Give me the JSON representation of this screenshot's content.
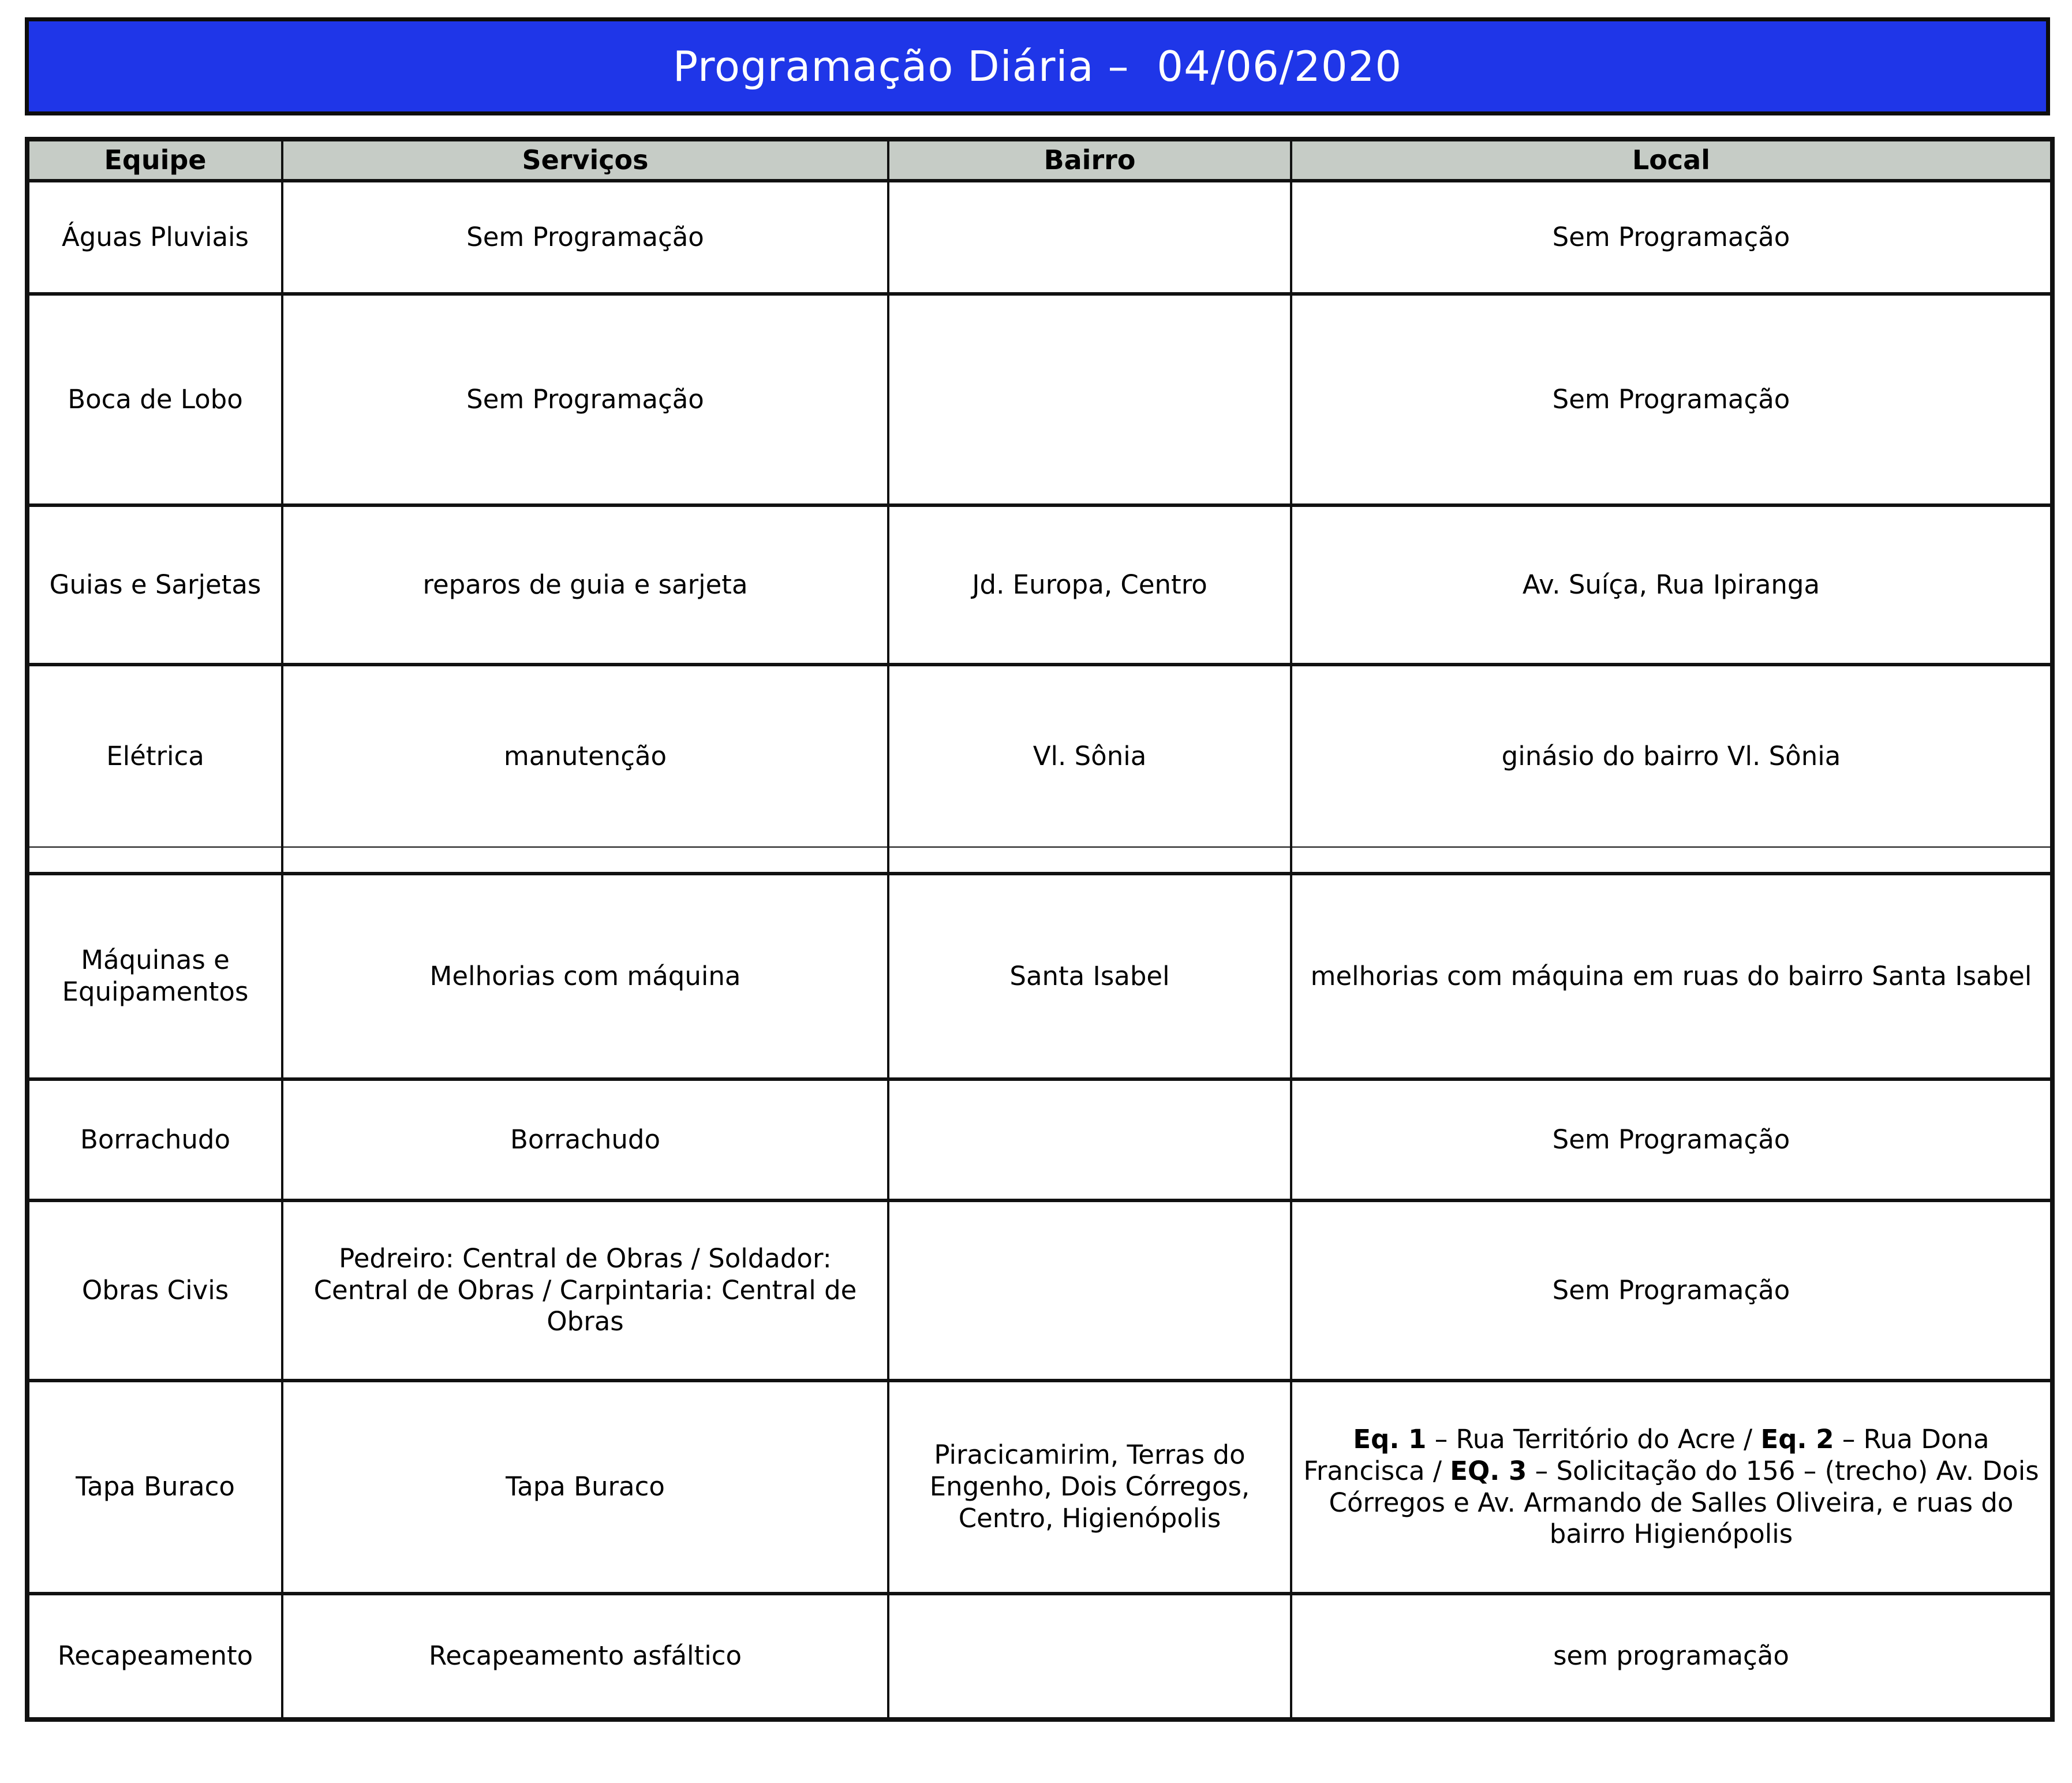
{
  "title": "Programação Diária –  04/06/2020",
  "colors": {
    "banner_background": "#1F36E8",
    "banner_text": "#FFFFFF",
    "header_background": "#C6CCC6",
    "border": "#111111",
    "body_text": "#000000"
  },
  "columns": [
    "Equipe",
    "Serviços",
    "Bairro",
    "Local"
  ],
  "rows": [
    {
      "equipe": "Águas Pluviais",
      "servicos": "Sem Programação",
      "bairro": "",
      "local": "Sem Programação"
    },
    {
      "equipe": "Boca de Lobo",
      "servicos": "Sem Programação",
      "bairro": "",
      "local": "Sem Programação"
    },
    {
      "equipe": "Guias e Sarjetas",
      "servicos": "reparos de guia e sarjeta",
      "bairro": "Jd. Europa, Centro",
      "local": "Av. Suíça, Rua Ipiranga"
    },
    {
      "equipe": "Elétrica",
      "servicos": "manutenção",
      "bairro": "Vl. Sônia",
      "local": "ginásio do bairro Vl. Sônia"
    },
    {
      "equipe": "Máquinas e Equipamentos",
      "servicos": "Melhorias com máquina",
      "bairro": "Santa Isabel",
      "local": "melhorias com máquina em ruas do bairro Santa Isabel"
    },
    {
      "equipe": "Borrachudo",
      "servicos": "Borrachudo",
      "bairro": "",
      "local": "Sem Programação"
    },
    {
      "equipe": "Obras Civis",
      "servicos": "Pedreiro: Central de Obras / Soldador: Central de Obras / Carpintaria: Central de Obras",
      "bairro": "",
      "local": "Sem Programação"
    },
    {
      "equipe": "Tapa Buraco",
      "servicos": "Tapa Buraco",
      "bairro": "Piracicamirim, Terras do Engenho, Dois Córregos, Centro, Higienópolis",
      "local_segments": [
        {
          "text": "Eq. 1",
          "bold": true
        },
        {
          "text": " – Rua Território do Acre / ",
          "bold": false
        },
        {
          "text": "Eq. 2",
          "bold": true
        },
        {
          "text": " – Rua Dona Francisca / ",
          "bold": false
        },
        {
          "text": "EQ. 3",
          "bold": true
        },
        {
          "text": " – Solicitação do 156 – (trecho) Av. Dois Córregos e Av. Armando de Salles Oliveira, e ruas do bairro Higienópolis",
          "bold": false
        }
      ]
    },
    {
      "equipe": "Recapeamento",
      "servicos": "Recapeamento asfáltico",
      "bairro": "",
      "local": "sem programação"
    }
  ]
}
